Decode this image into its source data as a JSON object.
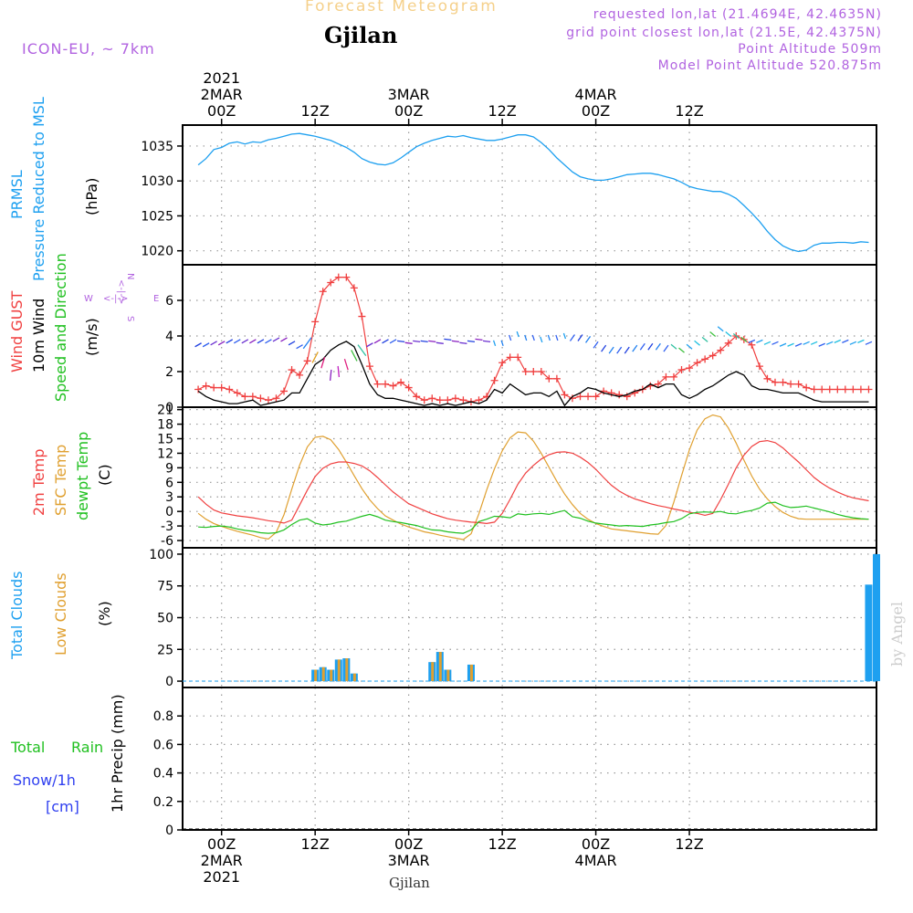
{
  "header": {
    "title": "Forecast Meteogram",
    "location": "Gjilan",
    "model": "ICON-EU, ~ 7km",
    "requested": "requested lon,lat (21.4694E, 42.4635N)",
    "grid_point": "grid point closest lon,lat (21.5E, 42.4375N)",
    "point_altitude": "Point Altitude 509m",
    "model_altitude": "Model Point Altitude 520.875m"
  },
  "footer": {
    "location": "Gjilan",
    "watermark": "by Angel"
  },
  "colors": {
    "pressure": "#1ea0f0",
    "gust": "#f04040",
    "wind": "#000000",
    "sfc": "#e0a030",
    "dewpt": "#20c020",
    "temp2m": "#f04040",
    "total_clouds": "#1ea0f0",
    "low_clouds": "#e0a030",
    "label_purple": "#b163e0",
    "rain_green": "#20c020",
    "snow_blue": "#3040f0"
  },
  "chart_data": [
    {
      "type": "line",
      "panel": "pressure",
      "ylabel_lines": [
        "PRMSL",
        "Pressure Reduced to MSL",
        "(hPa)"
      ],
      "ylim": [
        1018,
        1038
      ],
      "yticks": [
        1020,
        1025,
        1030,
        1035
      ],
      "grid": true,
      "x_hours_start": -3,
      "x_hours_step": 1,
      "series": [
        {
          "values": [
            1032.3,
            1033.2,
            1034.5,
            1034.8,
            1035.4,
            1035.6,
            1035.3,
            1035.6,
            1035.5,
            1035.9,
            1036.1,
            1036.4,
            1036.7,
            1036.8,
            1036.6,
            1036.4,
            1036.1,
            1035.8,
            1035.3,
            1034.8,
            1034.1,
            1033.2,
            1032.7,
            1032.4,
            1032.3,
            1032.6,
            1033.3,
            1034.1,
            1034.9,
            1035.4,
            1035.8,
            1036.1,
            1036.4,
            1036.3,
            1036.5,
            1036.2,
            1036.0,
            1035.8,
            1035.8,
            1036.0,
            1036.3,
            1036.6,
            1036.6,
            1036.3,
            1035.5,
            1034.5,
            1033.3,
            1032.3,
            1031.3,
            1030.6,
            1030.3,
            1030.1,
            1030.1,
            1030.3,
            1030.6,
            1030.9,
            1031.0,
            1031.1,
            1031.1,
            1030.9,
            1030.6,
            1030.3,
            1029.8,
            1029.2,
            1028.9,
            1028.7,
            1028.5,
            1028.5,
            1028.1,
            1027.5,
            1026.5,
            1025.4,
            1024.2,
            1022.8,
            1021.6,
            1020.7,
            1020.2,
            1019.9,
            1020.1,
            1020.8,
            1021.1,
            1021.1,
            1021.2,
            1021.2,
            1021.1,
            1021.3,
            1021.2
          ]
        }
      ]
    },
    {
      "type": "line",
      "panel": "wind",
      "ylabel_lines": [
        "Wind GUST",
        "10m Wind",
        "Speed and Direction",
        "(m/s)"
      ],
      "compass": {
        "north": "N",
        "south": "S",
        "west": "W",
        "east": "E",
        "arrows": "<-|->"
      },
      "ylim": [
        0,
        8
      ],
      "yticks": [
        0,
        2,
        4,
        6
      ],
      "grid": true,
      "x_hours_start": -3,
      "x_hours_step": 1,
      "series": [
        {
          "values": [
            1.0,
            1.2,
            1.1,
            1.1,
            1.0,
            0.8,
            0.6,
            0.6,
            0.5,
            0.4,
            0.5,
            0.9,
            2.1,
            1.8,
            2.6,
            4.8,
            6.5,
            7.0,
            7.3,
            7.3,
            6.7,
            5.1,
            2.3,
            1.3,
            1.3,
            1.2,
            1.4,
            1.1,
            0.6,
            0.4,
            0.5,
            0.4,
            0.4,
            0.5,
            0.4,
            0.3,
            0.4,
            0.6,
            1.5,
            2.5,
            2.8,
            2.8,
            2.0,
            2.0,
            2.0,
            1.6,
            1.6,
            0.7,
            0.5,
            0.6,
            0.6,
            0.6,
            0.9,
            0.8,
            0.7,
            0.6,
            0.8,
            1.0,
            1.2,
            1.3,
            1.7,
            1.7,
            2.1,
            2.2,
            2.5,
            2.7,
            2.9,
            3.2,
            3.6,
            4.0,
            3.8,
            3.5,
            2.3,
            1.6,
            1.4,
            1.4,
            1.3,
            1.3,
            1.1,
            1.0,
            1.0,
            1.0,
            1.0,
            1.0,
            1.0,
            1.0,
            1.0
          ]
        },
        {
          "values": [
            0.9,
            0.6,
            0.4,
            0.3,
            0.2,
            0.2,
            0.3,
            0.4,
            0.1,
            0.2,
            0.3,
            0.4,
            0.8,
            0.8,
            1.6,
            2.4,
            2.7,
            3.2,
            3.5,
            3.7,
            3.4,
            2.4,
            1.3,
            0.7,
            0.5,
            0.5,
            0.4,
            0.3,
            0.2,
            0.1,
            0.2,
            0.1,
            0.2,
            0.1,
            0.2,
            0.3,
            0.2,
            0.4,
            1.0,
            0.8,
            1.3,
            1.0,
            0.7,
            0.8,
            0.8,
            0.6,
            0.9,
            0.1,
            0.6,
            0.8,
            1.1,
            1.0,
            0.8,
            0.7,
            0.6,
            0.7,
            0.9,
            1.0,
            1.3,
            1.1,
            1.3,
            1.3,
            0.7,
            0.5,
            0.7,
            1.0,
            1.2,
            1.5,
            1.8,
            2.0,
            1.8,
            1.2,
            1.0,
            1.0,
            0.9,
            0.8,
            0.8,
            0.8,
            0.6,
            0.4,
            0.3,
            0.3,
            0.3,
            0.3,
            0.3,
            0.3,
            0.3
          ]
        },
        {
          "name": "direction_arrows",
          "values": [
            3.5,
            3.5,
            3.6,
            3.6,
            3.7,
            3.7,
            3.7,
            3.7,
            3.7,
            3.7,
            3.8,
            3.8,
            3.6,
            3.4,
            3.6,
            2.8,
            2.5,
            1.8,
            2.0,
            2.4,
            2.9,
            3.2,
            3.5,
            3.7,
            3.7,
            3.7,
            3.7,
            3.6,
            3.7,
            3.7,
            3.7,
            3.6,
            3.8,
            3.7,
            3.6,
            3.7,
            3.8,
            3.7,
            3.6,
            3.6,
            3.9,
            4.1,
            3.9,
            3.9,
            3.8,
            3.9,
            3.9,
            4.0,
            3.9,
            3.9,
            3.8,
            3.5,
            3.3,
            3.2,
            3.2,
            3.2,
            3.3,
            3.4,
            3.4,
            3.4,
            3.3,
            3.4,
            3.2,
            3.4,
            3.6,
            3.8,
            4.1,
            4.4,
            4.1,
            4.0,
            3.8,
            3.7,
            3.7,
            3.6,
            3.6,
            3.5,
            3.5,
            3.5,
            3.6,
            3.6,
            3.5,
            3.6,
            3.7,
            3.7,
            3.6,
            3.7,
            3.6
          ]
        }
      ]
    },
    {
      "type": "line",
      "panel": "temperature",
      "ylabel_lines": [
        "2m Temp",
        "SFC Temp",
        "dewpt Temp",
        "(C)"
      ],
      "ylim": [
        -7.5,
        21.5
      ],
      "yticks": [
        -6,
        -3,
        0,
        3,
        6,
        9,
        12,
        15,
        18,
        21
      ],
      "grid": true,
      "x_hours_start": -3,
      "x_hours_step": 1,
      "series": [
        {
          "name": "2m Temp",
          "values": [
            3.0,
            1.5,
            0.3,
            -0.3,
            -0.6,
            -0.9,
            -1.1,
            -1.3,
            -1.6,
            -1.9,
            -2.1,
            -2.4,
            -1.8,
            1.3,
            4.4,
            7.2,
            8.9,
            9.8,
            10.2,
            10.2,
            9.9,
            9.4,
            8.4,
            7.0,
            5.5,
            4.0,
            2.8,
            1.6,
            0.9,
            0.2,
            -0.5,
            -1.0,
            -1.5,
            -1.8,
            -2.0,
            -2.2,
            -2.3,
            -2.5,
            -2.2,
            -0.4,
            2.5,
            5.6,
            7.9,
            9.5,
            10.8,
            11.7,
            12.2,
            12.3,
            12.0,
            11.2,
            10.1,
            8.7,
            7.0,
            5.4,
            4.2,
            3.3,
            2.6,
            2.1,
            1.6,
            1.2,
            0.9,
            0.5,
            0.2,
            -0.2,
            -0.4,
            -0.8,
            -0.4,
            2.4,
            5.6,
            9.0,
            11.6,
            13.4,
            14.4,
            14.6,
            14.2,
            13.1,
            11.6,
            10.2,
            8.6,
            7.0,
            5.8,
            4.8,
            4.0,
            3.3,
            2.8,
            2.5,
            2.2
          ]
        },
        {
          "name": "SFC Temp",
          "values": [
            -0.4,
            -1.6,
            -2.5,
            -3.1,
            -3.6,
            -4.1,
            -4.5,
            -4.9,
            -5.4,
            -5.7,
            -4.3,
            -0.7,
            4.6,
            9.5,
            13.3,
            15.3,
            15.5,
            14.8,
            12.8,
            10.2,
            7.4,
            4.7,
            2.4,
            0.6,
            -0.9,
            -1.8,
            -2.6,
            -3.2,
            -3.7,
            -4.2,
            -4.5,
            -4.9,
            -5.2,
            -5.5,
            -5.8,
            -4.6,
            -0.5,
            4.4,
            8.8,
            12.5,
            15.2,
            16.4,
            16.2,
            14.5,
            12.0,
            9.1,
            6.2,
            3.6,
            1.4,
            -0.4,
            -1.6,
            -2.5,
            -3.1,
            -3.6,
            -3.8,
            -4.0,
            -4.2,
            -4.4,
            -4.6,
            -4.7,
            -2.9,
            1.9,
            7.4,
            12.7,
            16.8,
            19.1,
            19.9,
            19.5,
            17.2,
            14.1,
            10.6,
            7.3,
            4.6,
            2.6,
            1.0,
            -0.2,
            -1.0,
            -1.5,
            -1.6,
            -1.6,
            -1.6,
            -1.6,
            -1.6,
            -1.6,
            -1.6,
            -1.6,
            -1.6
          ]
        },
        {
          "name": "dewpt Temp",
          "values": [
            -3.2,
            -3.3,
            -3.1,
            -3.0,
            -3.2,
            -3.6,
            -3.9,
            -4.1,
            -4.4,
            -4.5,
            -4.4,
            -3.8,
            -2.7,
            -1.8,
            -1.5,
            -2.4,
            -2.8,
            -2.6,
            -2.2,
            -2.0,
            -1.5,
            -1.0,
            -0.6,
            -1.1,
            -1.8,
            -2.1,
            -2.3,
            -2.6,
            -2.9,
            -3.4,
            -3.8,
            -3.9,
            -4.2,
            -4.4,
            -4.5,
            -3.8,
            -2.1,
            -1.6,
            -1.0,
            -1.1,
            -1.3,
            -0.5,
            -0.7,
            -0.5,
            -0.4,
            -0.6,
            -0.2,
            0.2,
            -1.1,
            -1.4,
            -2.0,
            -2.4,
            -2.6,
            -2.8,
            -3.0,
            -2.9,
            -3.0,
            -3.1,
            -2.8,
            -2.6,
            -2.3,
            -2.1,
            -1.5,
            -0.5,
            -0.2,
            -0.1,
            -0.2,
            0.0,
            -0.4,
            -0.5,
            -0.1,
            0.2,
            0.7,
            1.7,
            1.9,
            1.2,
            0.8,
            0.9,
            1.1,
            0.7,
            0.3,
            -0.1,
            -0.6,
            -1.0,
            -1.3,
            -1.5,
            -1.6
          ]
        }
      ]
    },
    {
      "type": "bar",
      "panel": "clouds",
      "ylabel_lines": [
        "Total Clouds",
        "Low Clouds",
        "(%)"
      ],
      "ylim": [
        -5,
        105
      ],
      "yticks": [
        0,
        25,
        50,
        75,
        100
      ],
      "grid": true,
      "x_hours": [
        12,
        13,
        14,
        15,
        16,
        17,
        27,
        28,
        29,
        32,
        83,
        84
      ],
      "series": [
        {
          "name": "Total Clouds",
          "values": [
            9,
            11,
            9,
            17,
            18,
            6,
            15,
            23,
            9,
            13,
            76,
            100
          ]
        },
        {
          "name": "Low Clouds",
          "values": [
            9,
            11,
            9,
            17,
            18,
            6,
            15,
            23,
            9,
            13,
            0,
            0
          ]
        }
      ]
    },
    {
      "type": "bar",
      "panel": "precipitation",
      "ylabel_lines": [
        "1hr Precip (mm)"
      ],
      "left_labels": [
        "Total",
        "Rain",
        "Snow/1h",
        "[cm]"
      ],
      "ylim": [
        0,
        1.0
      ],
      "yticks": [
        0,
        0.2,
        0.4,
        0.6,
        0.8
      ],
      "grid": true,
      "series": []
    }
  ],
  "axis": {
    "top_ticks": [
      {
        "h": 0,
        "lines": [
          "2021",
          "2MAR",
          "00Z"
        ]
      },
      {
        "h": 12,
        "lines": [
          "12Z"
        ]
      },
      {
        "h": 24,
        "lines": [
          "3MAR",
          "00Z"
        ]
      },
      {
        "h": 36,
        "lines": [
          "12Z"
        ]
      },
      {
        "h": 48,
        "lines": [
          "4MAR",
          "00Z"
        ]
      },
      {
        "h": 60,
        "lines": [
          "12Z"
        ]
      }
    ],
    "bottom_ticks": [
      {
        "h": 0,
        "lines": [
          "00Z",
          "2MAR",
          "2021"
        ]
      },
      {
        "h": 12,
        "lines": [
          "12Z"
        ]
      },
      {
        "h": 24,
        "lines": [
          "00Z",
          "3MAR"
        ]
      },
      {
        "h": 36,
        "lines": [
          "12Z"
        ]
      },
      {
        "h": 48,
        "lines": [
          "00Z",
          "4MAR"
        ]
      },
      {
        "h": 60,
        "lines": [
          "12Z"
        ]
      }
    ]
  }
}
